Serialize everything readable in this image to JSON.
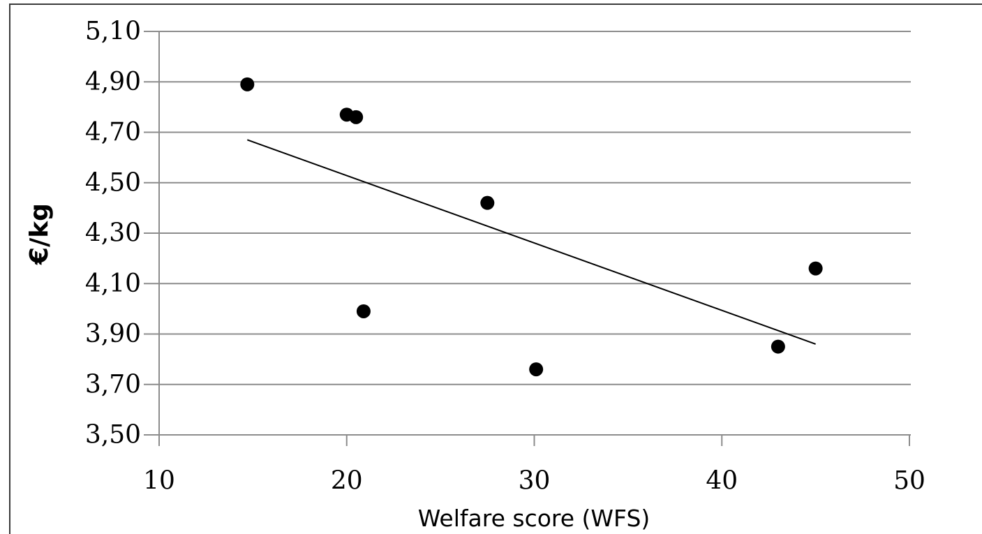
{
  "chart_data": {
    "type": "scatter",
    "title": "",
    "xlabel": "Welfare score (WFS)",
    "ylabel": "€/kg",
    "xlim": [
      10,
      50
    ],
    "ylim": [
      3.5,
      5.1
    ],
    "x_ticks": [
      "10",
      "20",
      "30",
      "40",
      "50"
    ],
    "y_ticks": [
      "3,50",
      "3,70",
      "3,90",
      "4,10",
      "4,30",
      "4,50",
      "4,70",
      "4,90",
      "5,10"
    ],
    "grid": "horizontal",
    "series": [
      {
        "points": [
          {
            "x": 14.7,
            "y": 4.89
          },
          {
            "x": 20.0,
            "y": 4.77
          },
          {
            "x": 20.5,
            "y": 4.76
          },
          {
            "x": 27.5,
            "y": 4.42
          },
          {
            "x": 20.9,
            "y": 3.99
          },
          {
            "x": 30.1,
            "y": 3.76
          },
          {
            "x": 43.0,
            "y": 3.85
          },
          {
            "x": 45.0,
            "y": 4.16
          }
        ]
      }
    ],
    "trendline": {
      "type": "linear",
      "start": {
        "x": 14.7,
        "y": 4.67
      },
      "end": {
        "x": 45.0,
        "y": 3.86
      }
    },
    "colors": {
      "points": "#000000",
      "trendline": "#000000",
      "grid": "#8c8c8c",
      "axis": "#8c8c8c"
    }
  }
}
